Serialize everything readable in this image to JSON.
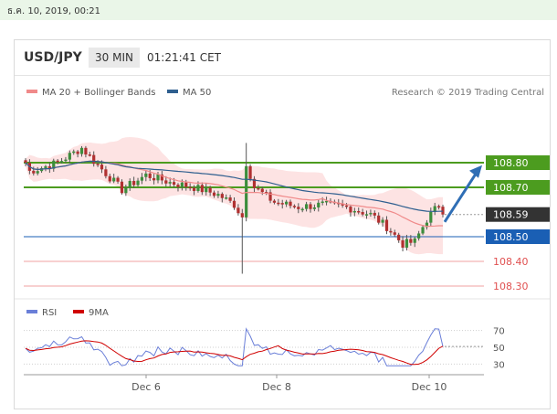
{
  "timestamp": "ธ.ค. 10, 2019, 00:21",
  "header": {
    "symbol": "USD/JPY",
    "timeframe": "30 MIN",
    "time": "01:21:41 CET"
  },
  "legend": {
    "ma20_label": "MA 20 + Bollinger Bands",
    "ma50_label": "MA 50",
    "ma20_color": "#f08a8a",
    "ma50_color": "#2f5f8f"
  },
  "credit": "Research © 2019 Trading Central",
  "chart_data": [
    {
      "type": "candlestick",
      "x_ticks": [
        "Dec 6",
        "Dec 8",
        "Dec 10"
      ],
      "ylim": [
        108.24,
        108.92
      ],
      "price_start": 108.8,
      "price_end": 108.59,
      "levels": [
        {
          "value": 108.8,
          "label": "108.80",
          "style": "resistance",
          "color": "#4c9c1f"
        },
        {
          "value": 108.7,
          "label": "108.70",
          "style": "resistance",
          "color": "#4c9c1f"
        },
        {
          "value": 108.59,
          "label": "108.59",
          "style": "last",
          "color": "#333333"
        },
        {
          "value": 108.5,
          "label": "108.50",
          "style": "pivot",
          "color": "#1a5fb4"
        },
        {
          "value": 108.4,
          "label": "108.40",
          "style": "support",
          "color": "#e05050"
        },
        {
          "value": 108.3,
          "label": "108.30",
          "style": "support",
          "color": "#e05050"
        }
      ],
      "arrow": {
        "from": 108.56,
        "to": 108.79,
        "direction": "up"
      }
    },
    {
      "type": "line",
      "legend": [
        "RSI",
        "9MA"
      ],
      "series_colors": {
        "RSI": "#6a7fd8",
        "9MA": "#d00000"
      },
      "ylim": [
        20,
        80
      ],
      "y_ticks": [
        30,
        50,
        70
      ],
      "y_tick_labels": [
        "30",
        "50",
        "70"
      ],
      "rsi_last": 51
    }
  ]
}
